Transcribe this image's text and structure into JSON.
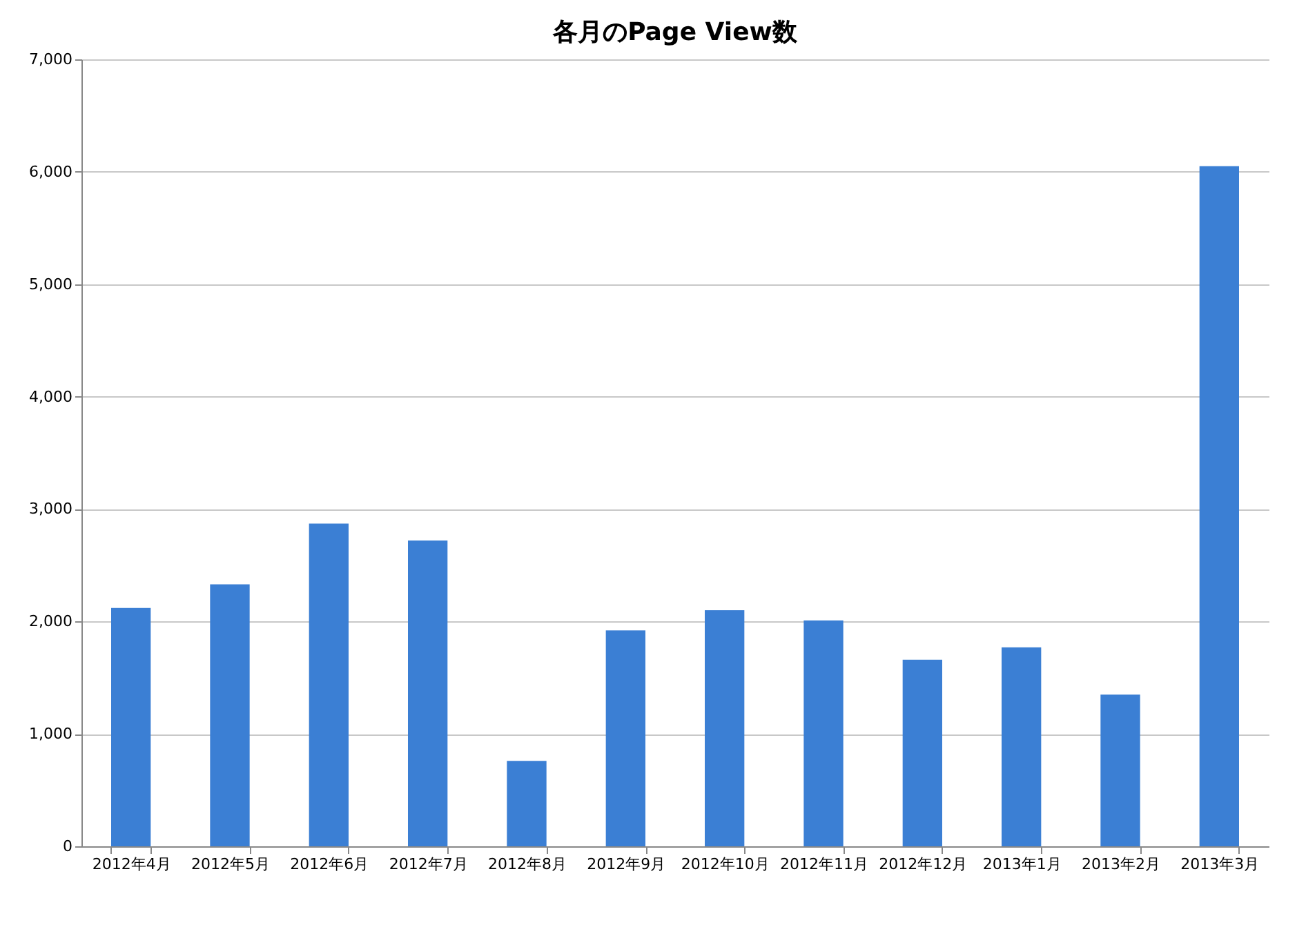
{
  "chart_data": {
    "type": "bar",
    "title": "各月のPage View数",
    "categories": [
      "2012年4月",
      "2012年5月",
      "2012年6月",
      "2012年7月",
      "2012年8月",
      "2012年9月",
      "2012年10月",
      "2012年11月",
      "2012年12月",
      "2013年1月",
      "2013年2月",
      "2013年3月"
    ],
    "values": [
      2120,
      2330,
      2870,
      2720,
      760,
      1920,
      2100,
      2010,
      1660,
      1770,
      1350,
      6050
    ],
    "color": "#3b7fd4",
    "ylim": [
      0,
      7000
    ],
    "yticks": [
      {
        "value": 0,
        "label": "0"
      },
      {
        "value": 1000,
        "label": "1,000"
      },
      {
        "value": 2000,
        "label": "2,000"
      },
      {
        "value": 3000,
        "label": "3,000"
      },
      {
        "value": 4000,
        "label": "4,000"
      },
      {
        "value": 5000,
        "label": "5,000"
      },
      {
        "value": 6000,
        "label": "6,000"
      },
      {
        "value": 7000,
        "label": "7,000"
      }
    ],
    "grid": "y"
  }
}
